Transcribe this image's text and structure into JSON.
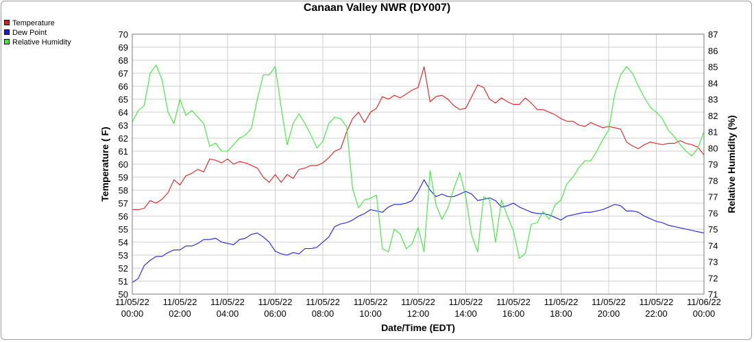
{
  "chart_data": {
    "type": "line",
    "title": "Canaan Valley NWR (DY007)",
    "xlabel": "Date/Time (EDT)",
    "ylabel": "Temperature ( F)",
    "y2label": "Relative Humidity (%)",
    "ylim": [
      50,
      70
    ],
    "y2lim": [
      71,
      87
    ],
    "xlim": [
      "11/05/22 00:00",
      "11/06/22 00:00"
    ],
    "grid": true,
    "legend_position": "top-left",
    "x_ticks": [
      {
        "date": "11/05/22",
        "time": "00:00"
      },
      {
        "date": "11/05/22",
        "time": "02:00"
      },
      {
        "date": "11/05/22",
        "time": "04:00"
      },
      {
        "date": "11/05/22",
        "time": "06:00"
      },
      {
        "date": "11/05/22",
        "time": "08:00"
      },
      {
        "date": "11/05/22",
        "time": "10:00"
      },
      {
        "date": "11/05/22",
        "time": "12:00"
      },
      {
        "date": "11/05/22",
        "time": "14:00"
      },
      {
        "date": "11/05/22",
        "time": "16:00"
      },
      {
        "date": "11/05/22",
        "time": "18:00"
      },
      {
        "date": "11/05/22",
        "time": "20:00"
      },
      {
        "date": "11/05/22",
        "time": "22:00"
      },
      {
        "date": "11/06/22",
        "time": "00:00"
      }
    ],
    "y_ticks": [
      50,
      51,
      52,
      53,
      54,
      55,
      56,
      57,
      58,
      59,
      60,
      61,
      62,
      63,
      64,
      65,
      66,
      67,
      68,
      69,
      70
    ],
    "y2_ticks": [
      71,
      72,
      73,
      74,
      75,
      76,
      77,
      78,
      79,
      80,
      81,
      82,
      83,
      84,
      85,
      86,
      87
    ],
    "x_hours": [
      0,
      0.25,
      0.5,
      0.75,
      1,
      1.25,
      1.5,
      1.75,
      2,
      2.25,
      2.5,
      2.75,
      3,
      3.25,
      3.5,
      3.75,
      4,
      4.25,
      4.5,
      4.75,
      5,
      5.25,
      5.5,
      5.75,
      6,
      6.25,
      6.5,
      6.75,
      7,
      7.25,
      7.5,
      7.75,
      8,
      8.25,
      8.5,
      8.75,
      9,
      9.25,
      9.5,
      9.75,
      10,
      10.25,
      10.5,
      10.75,
      11,
      11.25,
      11.5,
      11.75,
      12,
      12.25,
      12.5,
      12.75,
      13,
      13.25,
      13.5,
      13.75,
      14,
      14.25,
      14.5,
      14.75,
      15,
      15.25,
      15.5,
      15.75,
      16,
      16.25,
      16.5,
      16.75,
      17,
      17.25,
      17.5,
      17.75,
      18,
      18.25,
      18.5,
      18.75,
      19,
      19.25,
      19.5,
      19.75,
      20,
      20.25,
      20.5,
      20.75,
      21,
      21.25,
      21.5,
      21.75,
      22,
      22.25,
      22.5,
      22.75,
      23,
      23.25,
      23.5,
      23.75,
      24
    ],
    "series": [
      {
        "name": "Temperature",
        "color": "#e31a1a",
        "axis": "left",
        "values": [
          56.5,
          56.5,
          56.6,
          57.2,
          57.0,
          57.3,
          57.8,
          58.8,
          58.4,
          59.1,
          59.3,
          59.6,
          59.4,
          60.4,
          60.3,
          60.1,
          60.4,
          60.0,
          60.2,
          60.1,
          59.9,
          59.7,
          59.0,
          58.6,
          59.2,
          58.6,
          59.2,
          58.9,
          59.6,
          59.7,
          59.9,
          59.9,
          60.1,
          60.5,
          61.0,
          61.2,
          62.5,
          63.5,
          64.0,
          63.2,
          64.0,
          64.3,
          65.2,
          65.0,
          65.3,
          65.1,
          65.4,
          65.7,
          65.9,
          67.5,
          64.8,
          65.2,
          65.3,
          65.0,
          64.5,
          64.2,
          64.3,
          65.2,
          66.1,
          65.9,
          65.0,
          64.7,
          65.1,
          64.8,
          64.6,
          64.6,
          65.1,
          64.7,
          64.2,
          64.2,
          64.0,
          63.8,
          63.5,
          63.3,
          63.3,
          63.0,
          62.9,
          63.2,
          63.0,
          62.8,
          62.9,
          62.8,
          62.7,
          61.7,
          61.4,
          61.2,
          61.5,
          61.7,
          61.6,
          61.5,
          61.6,
          61.6,
          61.8,
          61.6,
          61.5,
          61.3,
          60.7
        ]
      },
      {
        "name": "Dew Point",
        "color": "#1a1ae3",
        "axis": "left",
        "values": [
          50.9,
          51.2,
          52.2,
          52.6,
          52.9,
          52.9,
          53.2,
          53.4,
          53.4,
          53.7,
          53.7,
          53.9,
          54.2,
          54.2,
          54.3,
          54.0,
          53.9,
          53.8,
          54.2,
          54.3,
          54.6,
          54.7,
          54.4,
          54.0,
          53.3,
          53.1,
          53.0,
          53.2,
          53.1,
          53.5,
          53.5,
          53.6,
          54.0,
          54.4,
          55.2,
          55.4,
          55.5,
          55.7,
          56.0,
          56.2,
          56.5,
          56.4,
          56.3,
          56.7,
          56.9,
          56.9,
          57.0,
          57.2,
          57.9,
          58.8,
          58.0,
          57.5,
          57.7,
          57.5,
          57.5,
          57.7,
          57.9,
          57.7,
          57.2,
          57.3,
          57.4,
          57.2,
          56.7,
          56.8,
          57.0,
          56.7,
          56.5,
          56.3,
          56.2,
          56.2,
          56.1,
          55.9,
          55.7,
          56.0,
          56.1,
          56.2,
          56.3,
          56.3,
          56.4,
          56.5,
          56.7,
          56.9,
          56.8,
          56.4,
          56.4,
          56.3,
          56.0,
          55.8,
          55.6,
          55.5,
          55.3,
          55.2,
          55.1,
          55.0,
          54.9,
          54.8,
          54.7
        ]
      },
      {
        "name": "Relative Humidity",
        "color": "#33ee33",
        "axis": "right",
        "values": [
          81.6,
          82.3,
          82.6,
          84.6,
          85.1,
          84.2,
          82.2,
          81.5,
          83.0,
          82.0,
          82.3,
          81.9,
          81.5,
          80.1,
          80.3,
          79.8,
          79.8,
          80.2,
          80.6,
          80.8,
          81.2,
          83.0,
          84.5,
          84.5,
          85.0,
          82.5,
          80.2,
          81.5,
          82.1,
          81.5,
          80.8,
          80.0,
          80.4,
          81.5,
          81.9,
          81.8,
          81.3,
          77.5,
          76.3,
          76.8,
          76.9,
          77.1,
          73.8,
          73.6,
          75.0,
          74.7,
          73.8,
          74.1,
          75.1,
          73.6,
          78.6,
          76.5,
          75.6,
          76.3,
          77.5,
          78.5,
          77.0,
          74.6,
          73.6,
          77.0,
          76.8,
          74.2,
          76.8,
          75.8,
          74.9,
          73.2,
          73.5,
          75.3,
          75.4,
          76.1,
          75.6,
          76.5,
          76.8,
          77.8,
          78.2,
          78.8,
          79.2,
          79.2,
          79.8,
          80.5,
          81.1,
          83.3,
          84.5,
          85.0,
          84.6,
          83.8,
          83.1,
          82.5,
          82.2,
          81.8,
          81.1,
          80.7,
          80.2,
          79.8,
          79.5,
          80.0,
          81.0
        ]
      }
    ]
  }
}
